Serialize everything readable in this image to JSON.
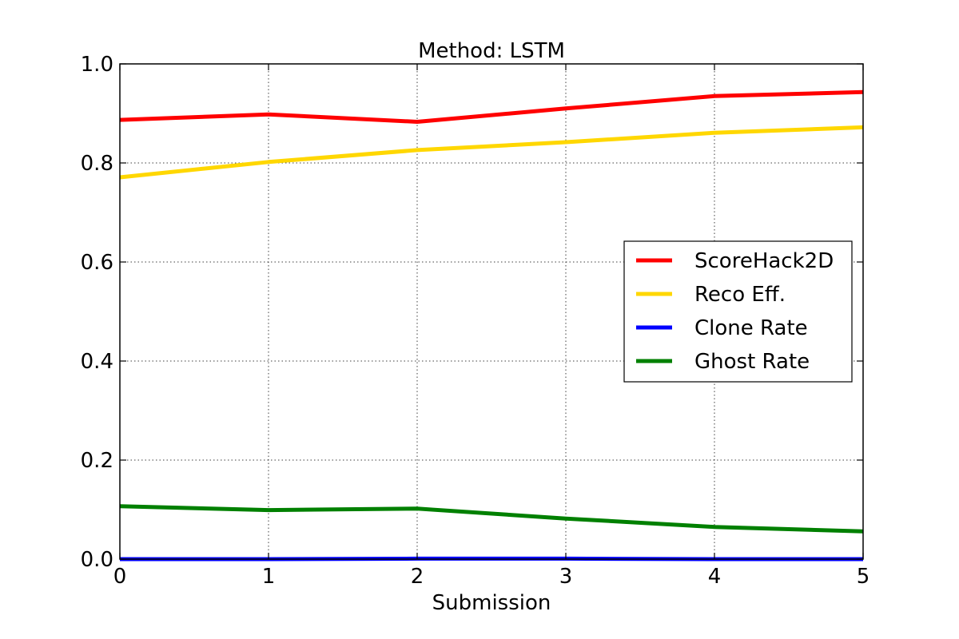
{
  "chart_data": {
    "type": "line",
    "title": "Method: LSTM",
    "xlabel": "Submission",
    "ylabel": "",
    "xlim": [
      0,
      5
    ],
    "ylim": [
      0.0,
      1.0
    ],
    "x": [
      0,
      1,
      2,
      3,
      4,
      5
    ],
    "xticks": [
      0,
      1,
      2,
      3,
      4,
      5
    ],
    "xtick_labels": [
      "0",
      "1",
      "2",
      "3",
      "4",
      "5"
    ],
    "yticks": [
      0.0,
      0.2,
      0.4,
      0.6,
      0.8,
      1.0
    ],
    "ytick_labels": [
      "0.0",
      "0.2",
      "0.4",
      "0.6",
      "0.8",
      "1.0"
    ],
    "grid": true,
    "legend_position": "center-right",
    "series": [
      {
        "name": "ScoreHack2D",
        "color": "#ff0000",
        "values": [
          0.887,
          0.898,
          0.883,
          0.91,
          0.935,
          0.943
        ]
      },
      {
        "name": "Reco Eff.",
        "color": "#ffd700",
        "values": [
          0.771,
          0.802,
          0.826,
          0.842,
          0.861,
          0.872
        ]
      },
      {
        "name": "Clone Rate",
        "color": "#0000ff",
        "values": [
          0.0,
          0.0,
          0.001,
          0.001,
          0.0,
          0.0
        ]
      },
      {
        "name": "Ghost Rate",
        "color": "#008000",
        "values": [
          0.107,
          0.099,
          0.102,
          0.082,
          0.065,
          0.056
        ]
      }
    ]
  }
}
